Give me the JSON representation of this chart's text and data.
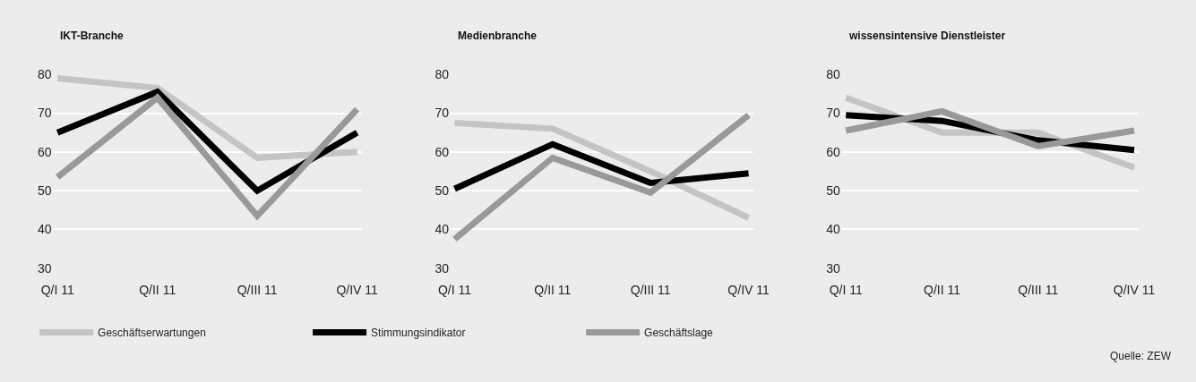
{
  "chart_data": [
    {
      "type": "line",
      "title": "IKT-Branche",
      "categories": [
        "Q/I 11",
        "Q/II 11",
        "Q/III 11",
        "Q/IV 11"
      ],
      "ylim": [
        30,
        80
      ],
      "yticks": [
        30,
        40,
        50,
        60,
        70,
        80
      ],
      "grid": "y",
      "legend": "bottom",
      "marker": "none",
      "line_style": "solid",
      "series": [
        {
          "name": "Geschäftserwartungen",
          "color": "#c4c4c4",
          "values": [
            79,
            76.5,
            58.5,
            60
          ]
        },
        {
          "name": "Stimmungsindikator",
          "color": "#000000",
          "values": [
            65,
            75.5,
            50,
            65
          ]
        },
        {
          "name": "Geschäftslage",
          "color": "#999999",
          "values": [
            53.5,
            74,
            43.5,
            71
          ]
        }
      ]
    },
    {
      "type": "line",
      "title": "Medienbranche",
      "categories": [
        "Q/I 11",
        "Q/II 11",
        "Q/III 11",
        "Q/IV 11"
      ],
      "ylim": [
        30,
        80
      ],
      "yticks": [
        30,
        40,
        50,
        60,
        70,
        80
      ],
      "grid": "y",
      "marker": "none",
      "line_style": "solid",
      "series": [
        {
          "color": "#c4c4c4",
          "values": [
            67.5,
            66,
            55,
            43
          ]
        },
        {
          "color": "#000000",
          "values": [
            50.5,
            62,
            52,
            54.5
          ]
        },
        {
          "color": "#999999",
          "values": [
            37.5,
            58.5,
            49.5,
            69.5
          ]
        }
      ]
    },
    {
      "type": "line",
      "title": "wissensintensive Dienstleister",
      "categories": [
        "Q/I 11",
        "Q/II 11",
        "Q/III 11",
        "Q/IV 11"
      ],
      "ylim": [
        30,
        80
      ],
      "yticks": [
        30,
        40,
        50,
        60,
        70,
        80
      ],
      "grid": "y",
      "marker": "none",
      "line_style": "solid",
      "annotations": [
        "Quelle: ZEW"
      ],
      "series": [
        {
          "color": "#c4c4c4",
          "values": [
            74,
            65,
            65,
            56
          ]
        },
        {
          "color": "#000000",
          "values": [
            69.5,
            68,
            63,
            60.5
          ]
        },
        {
          "color": "#999999",
          "values": [
            65.5,
            70.5,
            61.5,
            65.5
          ]
        }
      ]
    }
  ]
}
